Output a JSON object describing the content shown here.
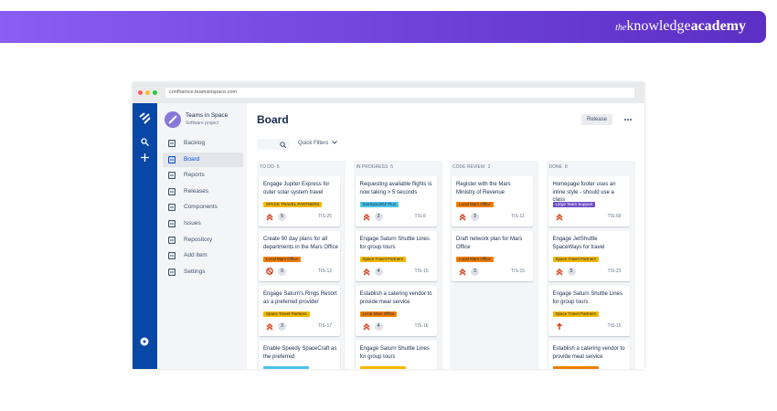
{
  "banner": {
    "brand": {
      "prefix": "the",
      "main": "knowledge",
      "bold": "academy"
    }
  },
  "browser": {
    "url": "confluence.teamsinspace.com"
  },
  "sidebar": {
    "project": {
      "name": "Teams in Space",
      "type": "Software project"
    },
    "items": [
      "Backlog",
      "Board",
      "Reports",
      "Releases",
      "Components",
      "Issues",
      "Repository",
      "Add item",
      "Settings"
    ],
    "active": 1
  },
  "board": {
    "title": "Board",
    "actions": {
      "release": "Release"
    },
    "filters": {
      "quick": "Quick Filters"
    },
    "columns": [
      {
        "name": "TO DO",
        "count": 5,
        "cards": [
          {
            "title": "Engage Jupiter Express for outer solar system travel",
            "label": "SPACE TRAVEL PARTNERS",
            "label_color": "#f5b800",
            "priority": "highest",
            "votes": 5,
            "key": "TIS-25"
          },
          {
            "title": "Create 90 day plans for all departments in the Mars Office",
            "label": "Local Mars Office",
            "label_color": "#f07d00",
            "priority": "blocker",
            "votes": 9,
            "key": "TIS-12"
          },
          {
            "title": "Engage Saturn's Rings Resort as a preferred provider",
            "label": "Space Travel Partners",
            "label_color": "#f5b800",
            "priority": "highest",
            "votes": 3,
            "key": "TIS-17"
          },
          {
            "title": "Enable Speedy SpaceCraft as the preferred",
            "label_color": "#4bc3e8"
          }
        ]
      },
      {
        "name": "IN PROGRESS",
        "count": 5,
        "cards": [
          {
            "title": "Requesting available flights is now taking > 5 seconds",
            "label": "SeeSpaceEZ Plus",
            "label_color": "#4bc3e8",
            "priority": "highest",
            "votes": 3,
            "key": "TIS-8"
          },
          {
            "title": "Engage Saturn Shuttle Lines for group tours",
            "label": "Space Travel Partners",
            "label_color": "#f5b800",
            "priority": "highest",
            "votes": 4,
            "key": "TIS-15"
          },
          {
            "title": "Establish a catering vendor to provide meal service",
            "label": "Local Mars Office",
            "label_color": "#f07d00",
            "priority": "highest",
            "votes": 4,
            "key": "TIS-16"
          },
          {
            "title": "Engage Saturn Shuttle Lines for group tours",
            "label_color": "#f5b800"
          }
        ]
      },
      {
        "name": "CODE REVIEW",
        "count": 2,
        "cards": [
          {
            "title": "Register with the Mars Ministry of Revenue",
            "label": "Local Mars Office",
            "label_color": "#f07d00",
            "priority": "highest",
            "votes": 3,
            "key": "TIS-11"
          },
          {
            "title": "Draft network plan for Mars Office",
            "label": "Local Mars Office",
            "label_color": "#f07d00",
            "priority": "highest",
            "votes": 3,
            "key": "TIS-15"
          }
        ]
      },
      {
        "name": "DONE",
        "count": 8,
        "cards": [
          {
            "title": "Homepage footer uses an inline style - should use a class",
            "label": "Large Team Support",
            "label_color": "#6e4fc6",
            "priority": "highest",
            "key": "TIS-68"
          },
          {
            "title": "Engage JetShuttle SpaceWays for travel",
            "label": "Space Travel Partners",
            "label_color": "#f5b800",
            "priority": "highest",
            "votes": 5,
            "key": "TIS-23"
          },
          {
            "title": "Engage Saturn Shuttle Lines for group tours",
            "label": "Space Travel Partners",
            "label_color": "#f5b800",
            "priority": "high",
            "key": "TIS-15"
          },
          {
            "title": "Establish a catering vendor to provide meal service",
            "label_color": "#f07d00"
          }
        ]
      }
    ]
  }
}
